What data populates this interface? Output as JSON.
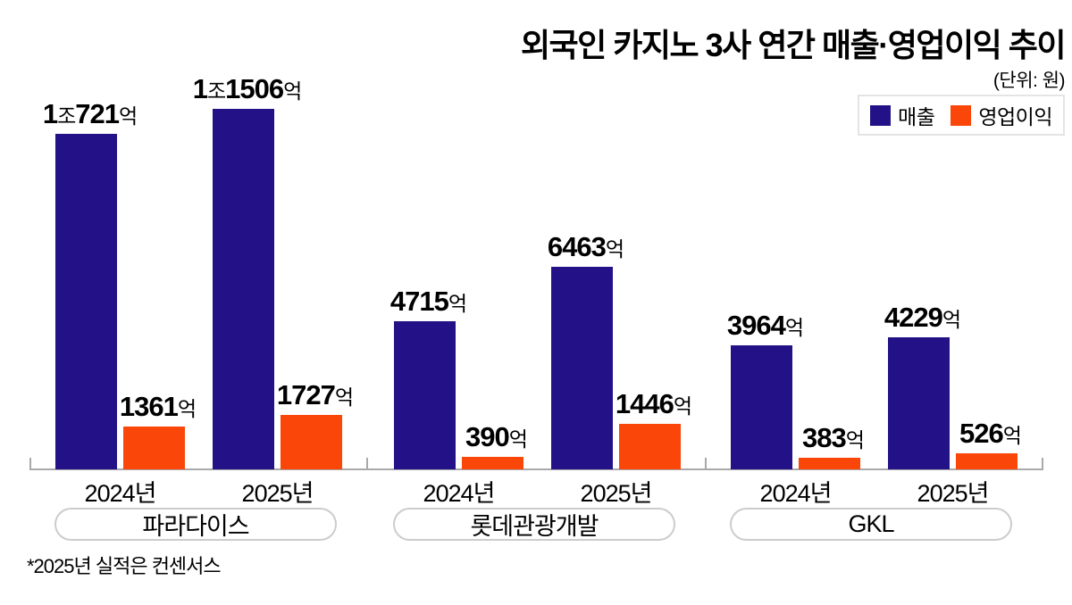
{
  "title": "외국인 카지노 3사 연간 매출·영업이익 추이",
  "unit_note": "(단위: 원)",
  "legend": [
    {
      "label": "매출",
      "color": "#231187"
    },
    {
      "label": "영업이익",
      "color": "#fa4608"
    }
  ],
  "footnote": "*2025년 실적은 컨센서스",
  "colors": {
    "revenue": "#231187",
    "profit": "#fa4608",
    "axis": "#a9a9a9"
  },
  "chart_data": {
    "type": "bar",
    "unit": "원",
    "series": [
      "매출",
      "영업이익"
    ],
    "value_unit_of_numbers": "억",
    "groups": [
      {
        "company": "파라다이스",
        "bars": [
          {
            "year": "2024년",
            "revenue": 10721,
            "revenue_label": "1조721억",
            "profit": 1361,
            "profit_label": "1361억"
          },
          {
            "year": "2025년",
            "revenue": 11506,
            "revenue_label": "1조1506억",
            "profit": 1727,
            "profit_label": "1727억"
          }
        ]
      },
      {
        "company": "롯데관광개발",
        "bars": [
          {
            "year": "2024년",
            "revenue": 4715,
            "revenue_label": "4715억",
            "profit": 390,
            "profit_label": "390억"
          },
          {
            "year": "2025년",
            "revenue": 6463,
            "revenue_label": "6463억",
            "profit": 1446,
            "profit_label": "1446억"
          }
        ]
      },
      {
        "company": "GKL",
        "bars": [
          {
            "year": "2024년",
            "revenue": 3964,
            "revenue_label": "3964억",
            "profit": 383,
            "profit_label": "383억"
          },
          {
            "year": "2025년",
            "revenue": 4229,
            "revenue_label": "4229억",
            "profit": 526,
            "profit_label": "526억"
          }
        ]
      }
    ],
    "layout_hints": {
      "legend_position": "top-right",
      "grid": false,
      "baseline_axis": true
    }
  }
}
